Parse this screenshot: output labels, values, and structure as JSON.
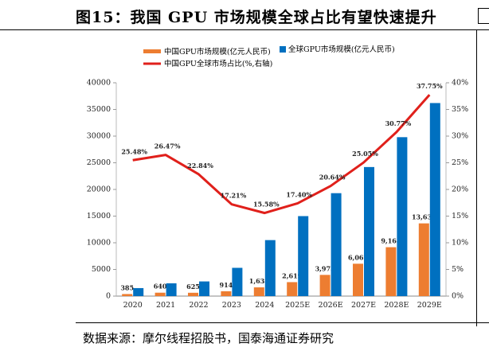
{
  "header": {
    "title": "图15：我国 GPU 市场规模全球占比有望快速提升"
  },
  "footer": {
    "source": "数据来源：摩尔线程招股书，国泰海通证券研究"
  },
  "colors": {
    "china": "#ED7D31",
    "global": "#0070C0",
    "share": "#E0201B"
  },
  "chart_data": {
    "type": "bar",
    "categories": [
      "2020",
      "2021",
      "2022",
      "2023",
      "2024",
      "2025E",
      "2026E",
      "2027E",
      "2028E",
      "2029E"
    ],
    "series": [
      {
        "name": "中国GPU市场规模(亿元人民币)",
        "type": "bar",
        "axis": "left",
        "values": [
          385,
          640,
          625,
          914,
          1638,
          2619,
          3975,
          6069,
          9168,
          13636
        ],
        "labels": [
          "385",
          "640",
          "625",
          "914",
          "1,638",
          "2,619",
          "3,975",
          "6,069",
          "9,168",
          "13,636"
        ]
      },
      {
        "name": "全球GPU市场规模(亿元人民币)",
        "type": "bar",
        "axis": "left",
        "values": [
          1500,
          2400,
          2750,
          5300,
          10500,
          15000,
          19300,
          24200,
          29800,
          36200
        ]
      },
      {
        "name": "中国GPU全球市场占比(%,右轴)",
        "type": "line",
        "axis": "right",
        "values": [
          25.48,
          26.47,
          22.84,
          17.21,
          15.58,
          17.4,
          20.64,
          25.05,
          30.77,
          37.75
        ],
        "labels": [
          "25.48%",
          "26.47%",
          "22.84%",
          "17.21%",
          "15.58%",
          "17.40%",
          "20.64%",
          "25.05%",
          "30.77%",
          "37.75%"
        ]
      }
    ],
    "ylim": [
      0,
      40000
    ],
    "yticks": [
      "0",
      "5000",
      "10000",
      "15000",
      "20000",
      "25000",
      "30000",
      "35000",
      "40000"
    ],
    "y2lim": [
      0,
      40
    ],
    "y2ticks": [
      "0%",
      "5%",
      "10%",
      "15%",
      "20%",
      "25%",
      "30%",
      "35%",
      "40%"
    ],
    "grid": false,
    "legend_position": "top"
  }
}
